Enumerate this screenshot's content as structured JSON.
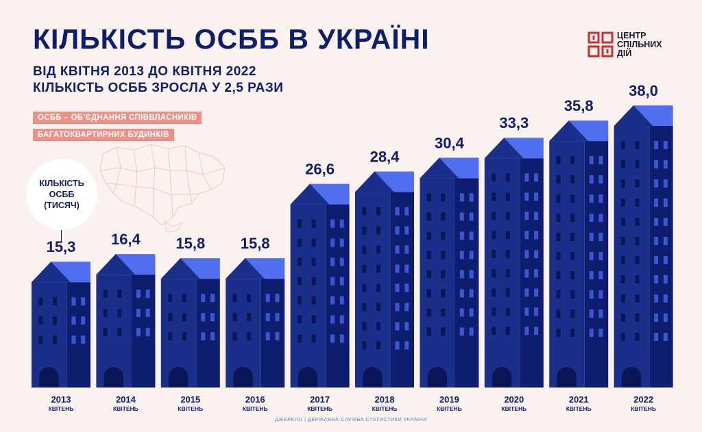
{
  "header": {
    "title": "КІЛЬКІСТЬ ОСББ В УКРАЇНІ",
    "subtitle_line1": "ВІД КВІТНЯ 2013 ДО КВІТНЯ 2022",
    "subtitle_line2_prefix": "КІЛЬКІСТЬ ОСББ ЗРОСЛА У ",
    "subtitle_line2_highlight": "2,5 РАЗИ"
  },
  "logo": {
    "line1": "ЦЕНТР",
    "line2": "СПІЛЬНИХ",
    "line3": "ДІЙ"
  },
  "tags": {
    "line1": "ОСББ – ОБ'ЄДНАННЯ СПІВВЛАСНИКІВ",
    "line2": "БАГАТОКВАРТИРНИХ БУДИНКІВ"
  },
  "unit": {
    "line1": "КІЛЬКІСТЬ",
    "line2": "ОСББ",
    "line3": "(ТИСЯЧ)"
  },
  "source": "ДЖЕРЕЛО | ДЕРЖАВНА СЛУЖБА СТАТИСТИКИ УКРАЇНИ",
  "colors": {
    "building_dark": "#0e1e6e",
    "building_mid": "#1a2f8a",
    "roof": "#4f6ef0",
    "window": "#0a1655",
    "window_light": "#3c56d0",
    "accent_tag": "#f28f85",
    "background": "#fbf1ef"
  },
  "chart_data": {
    "type": "bar",
    "title": "КІЛЬКІСТЬ ОСББ В УКРАЇНІ",
    "ylabel": "КІЛЬКІСТЬ ОСББ (ТИСЯЧ)",
    "xlabel": "",
    "categories": [
      "2013",
      "2014",
      "2015",
      "2016",
      "2017",
      "2018",
      "2019",
      "2020",
      "2021",
      "2022"
    ],
    "sublabel": "КВІТЕНЬ",
    "values": [
      15.3,
      16.4,
      15.8,
      15.8,
      26.6,
      28.4,
      30.4,
      33.3,
      35.8,
      38.0
    ],
    "value_labels": [
      "15,3",
      "16,4",
      "15,8",
      "15,8",
      "26,6",
      "28,4",
      "30,4",
      "33,3",
      "35,8",
      "38,0"
    ],
    "ylim": [
      0,
      40
    ],
    "grid": false,
    "legend": "none"
  }
}
